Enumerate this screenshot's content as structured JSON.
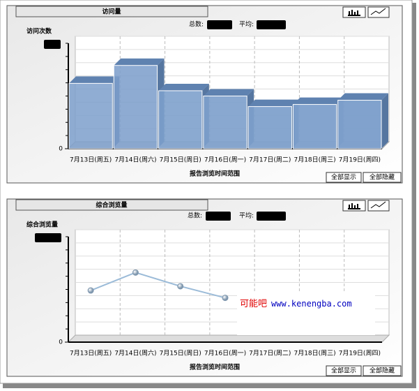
{
  "chart_data": [
    {
      "type": "bar3d",
      "title": "访问量",
      "total_label": "总数:",
      "average_label": "平均:",
      "ylabel": "访问次数",
      "xlabel": "报告浏览时间范围",
      "buttons": [
        "全部显示",
        "全部隐藏"
      ],
      "categories": [
        "7月13日(周五)",
        "7月14日(周六)",
        "7月15日(周日)",
        "7月16日(周一)",
        "7月17日(周二)",
        "7月18日(周三)",
        "7月19日(周四)"
      ],
      "values": [
        62,
        79,
        55,
        50,
        40,
        42,
        46
      ],
      "color": "#7d9fcb",
      "ylim": [
        0,
        100
      ],
      "yticks": [
        0
      ]
    },
    {
      "type": "line",
      "title": "综合浏览量",
      "total_label": "总数:",
      "average_label": "平均:",
      "ylabel": "综合浏览量",
      "xlabel": "报告浏览时间范围",
      "buttons": [
        "全部显示",
        "全部隐藏"
      ],
      "categories": [
        "7月13日(周五)",
        "7月14日(周六)",
        "7月15日(周日)",
        "7月16日(周一)",
        "7月17日(周二)",
        "7月18日(周三)",
        "7月19日(周四)"
      ],
      "values": [
        49,
        66,
        53,
        42,
        null,
        null,
        null
      ],
      "color": "#9bbbd8",
      "ylim": [
        0,
        100
      ],
      "yticks": [
        0
      ]
    }
  ],
  "watermark": {
    "name": "可能吧",
    "url": "www.kenengba.com"
  }
}
